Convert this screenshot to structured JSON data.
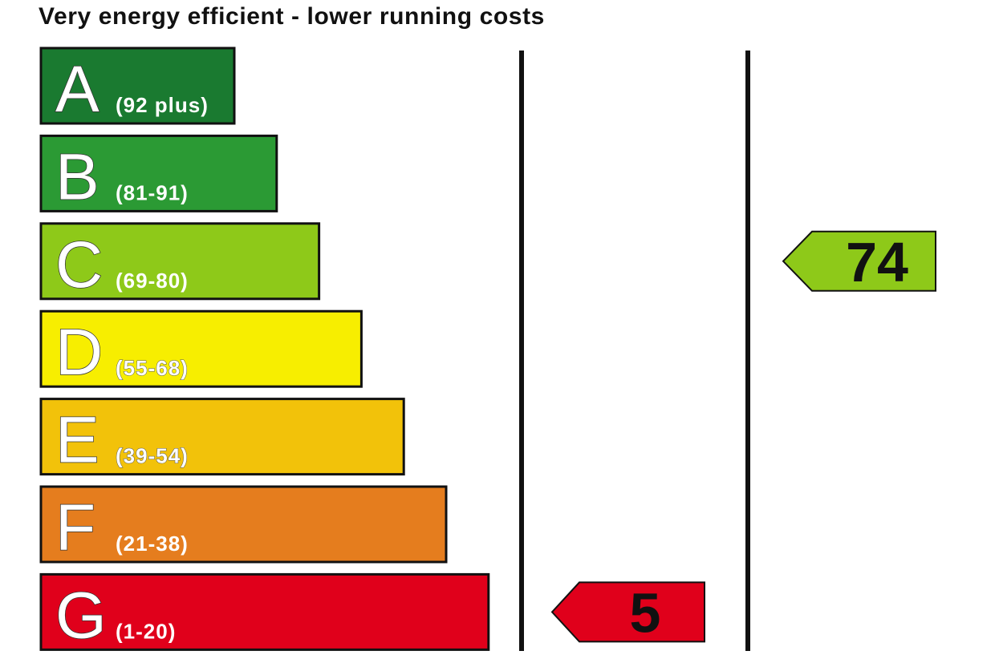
{
  "header": {
    "title": "Very energy efficient - lower running costs"
  },
  "chart_data": {
    "type": "bar",
    "title": "Very energy efficient - lower running costs",
    "bands": [
      {
        "letter": "A",
        "range": "(92 plus)",
        "color": "#1a7a30"
      },
      {
        "letter": "B",
        "range": "(81-91)",
        "color": "#2b9a34"
      },
      {
        "letter": "C",
        "range": "(69-80)",
        "color": "#8ec919"
      },
      {
        "letter": "D",
        "range": "(55-68)",
        "color": "#f7ee00"
      },
      {
        "letter": "E",
        "range": "(39-54)",
        "color": "#f2c20a"
      },
      {
        "letter": "F",
        "range": "(21-38)",
        "color": "#e57d1e"
      },
      {
        "letter": "G",
        "range": "(1-20)",
        "color": "#e0001b"
      }
    ],
    "series": [
      {
        "values": [
          5
        ],
        "band": "G",
        "color": "#e0001b"
      },
      {
        "values": [
          74
        ],
        "band": "C",
        "color": "#8ec919"
      }
    ]
  }
}
